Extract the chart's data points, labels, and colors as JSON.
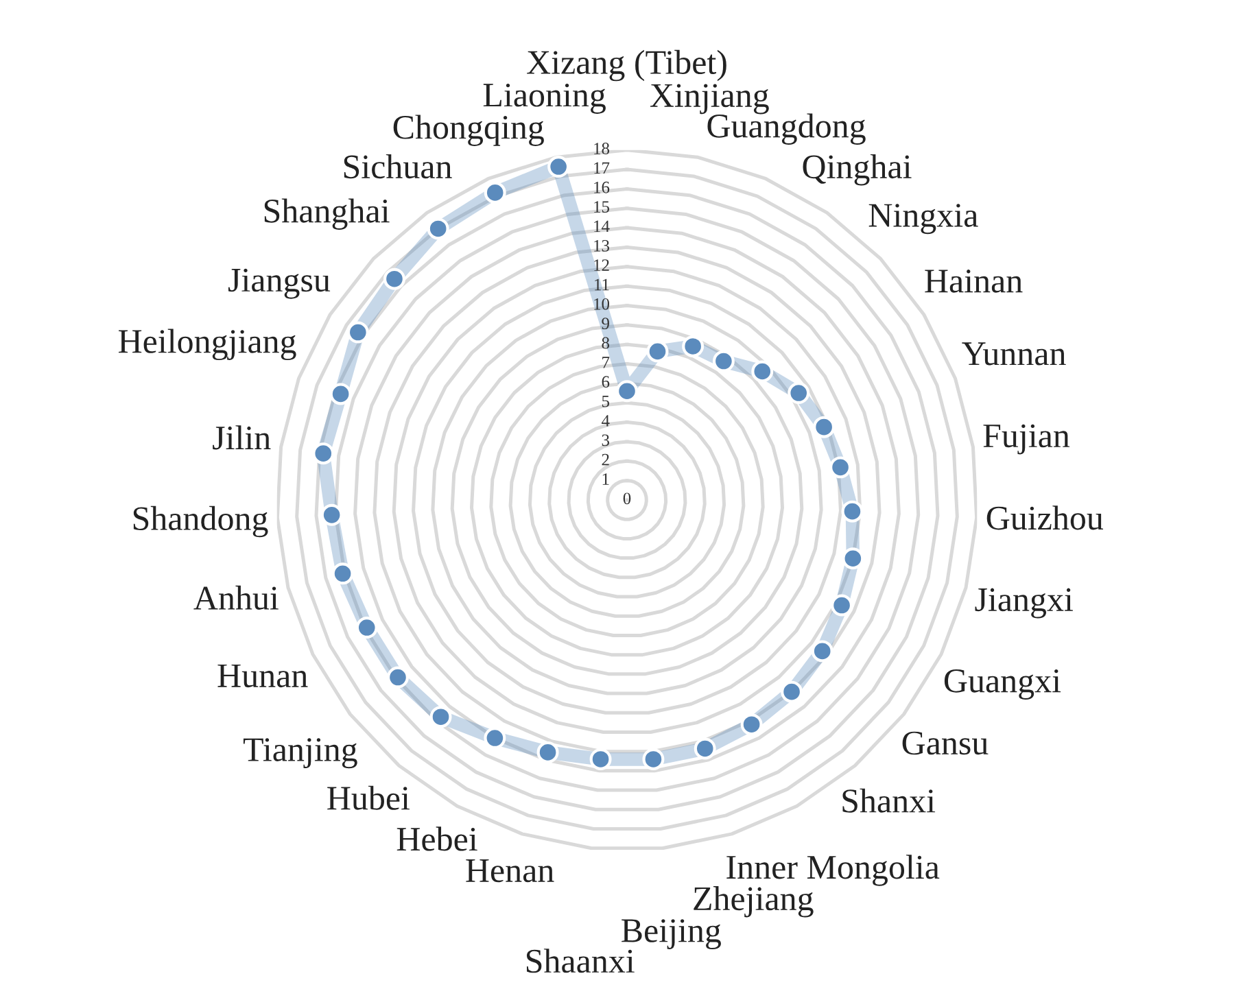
{
  "chart_data": {
    "type": "radar",
    "categories": [
      "Xizang (Tibet)",
      "Xinjiang",
      "Guangdong",
      "Qinghai",
      "Ningxia",
      "Hainan",
      "Yunnan",
      "Fujian",
      "Guizhou",
      "Jiangxi",
      "Guangxi",
      "Gansu",
      "Shanxi",
      "Inner Mongolia",
      "Zhejiang",
      "Beijing",
      "Shaanxi",
      "Henan",
      "Hebei",
      "Hubei",
      "Tianjing",
      "Hunan",
      "Anhui",
      "Shandong",
      "Jilin",
      "Heilongjiang",
      "Jiangsu",
      "Shanghai",
      "Sichuan",
      "Chongqing",
      "Liaoning"
    ],
    "series": [
      {
        "color": "#5b8bbd",
        "values": [
          5.6,
          7.8,
          8.6,
          8.7,
          9.6,
          10.4,
          10.8,
          11.1,
          11.6,
          12.0,
          12.3,
          12.7,
          13.0,
          13.2,
          13.4,
          13.4,
          13.4,
          13.6,
          14.0,
          14.7,
          14.9,
          14.9,
          15.1,
          15.2,
          15.8,
          15.7,
          16.3,
          16.5,
          17.0,
          17.2,
          17.5
        ]
      }
    ],
    "ylim": [
      0,
      18
    ],
    "yticks": [
      0,
      1,
      2,
      3,
      4,
      5,
      6,
      7,
      8,
      9,
      10,
      11,
      12,
      13,
      14,
      15,
      16,
      17,
      18
    ],
    "grid": true,
    "marker": "circle",
    "line_style": "solid"
  }
}
